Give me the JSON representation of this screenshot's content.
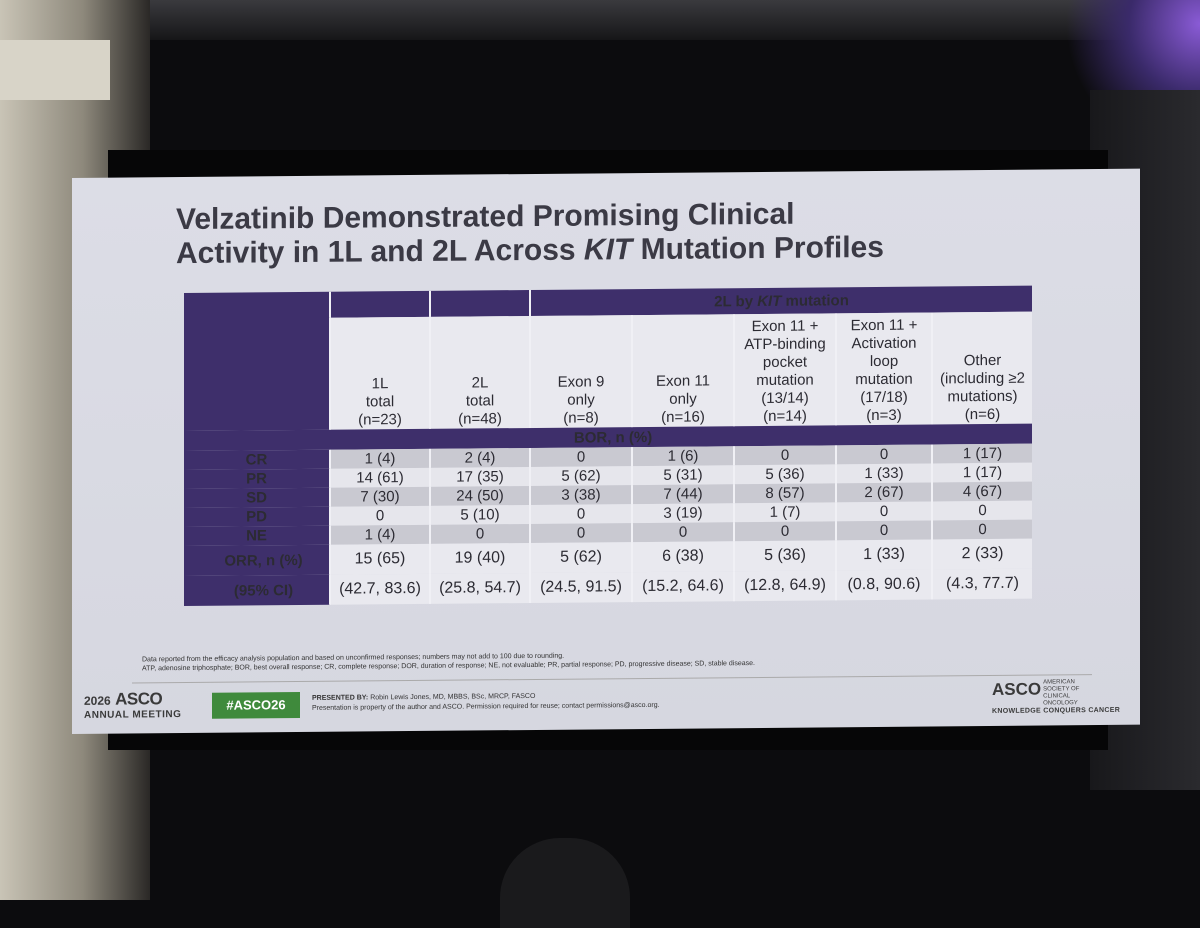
{
  "slide": {
    "title_line1": "Velzatinib Demonstrated Promising Clinical",
    "title_line2_pre": "Activity in 1L and 2L Across ",
    "title_line2_italic": "KIT",
    "title_line2_post": " Mutation Profiles"
  },
  "table": {
    "group_header_pre": "2L by ",
    "group_header_italic": "KIT",
    "group_header_post": " mutation",
    "columns": [
      {
        "l1": "1L",
        "l2": "total",
        "l3": "(n=23)"
      },
      {
        "l1": "2L",
        "l2": "total",
        "l3": "(n=48)"
      },
      {
        "l1": "Exon 9",
        "l2": "only",
        "l3": "(n=8)"
      },
      {
        "l1": "Exon 11",
        "l2": "only",
        "l3": "(n=16)"
      },
      {
        "l0a": "Exon 11 +",
        "l0b": "ATP-binding",
        "l0c": "pocket",
        "l1": "mutation",
        "l2": "(13/14)",
        "l3": "(n=14)"
      },
      {
        "l0b": "Exon 11 +",
        "l0c": "Activation",
        "l1": "loop",
        "l2": "mutation",
        "l3": "(17/18)",
        "l4": "(n=3)"
      },
      {
        "l1": "Other",
        "l2": "(including ≥2",
        "l3": "mutations)",
        "l4": "(n=6)"
      }
    ],
    "section_label": "BOR, n (%)",
    "rows": [
      {
        "label": "CR",
        "values": [
          "1 (4)",
          "2 (4)",
          "0",
          "1 (6)",
          "0",
          "0",
          "1 (17)"
        ]
      },
      {
        "label": "PR",
        "values": [
          "14 (61)",
          "17 (35)",
          "5 (62)",
          "5 (31)",
          "5 (36)",
          "1 (33)",
          "1 (17)"
        ]
      },
      {
        "label": "SD",
        "values": [
          "7 (30)",
          "24 (50)",
          "3 (38)",
          "7 (44)",
          "8 (57)",
          "2 (67)",
          "4 (67)"
        ]
      },
      {
        "label": "PD",
        "values": [
          "0",
          "5 (10)",
          "0",
          "3 (19)",
          "1 (7)",
          "0",
          "0"
        ]
      },
      {
        "label": "NE",
        "values": [
          "1 (4)",
          "0",
          "0",
          "0",
          "0",
          "0",
          "0"
        ]
      }
    ],
    "orr": {
      "label": "ORR, n (%)",
      "values": [
        "15 (65)",
        "19 (40)",
        "5 (62)",
        "6 (38)",
        "5 (36)",
        "1 (33)",
        "2 (33)"
      ]
    },
    "ci": {
      "label": "(95% CI)",
      "values": [
        "(42.7, 83.6)",
        "(25.8, 54.7)",
        "(24.5, 91.5)",
        "(15.2, 64.6)",
        "(12.8, 64.9)",
        "(0.8, 90.6)",
        "(4.3, 77.7)"
      ]
    }
  },
  "footnote": {
    "line1": "Data reported from the efficacy analysis population and based on unconfirmed responses; numbers may not add to 100 due to rounding.",
    "line2": "ATP, adenosine triphosphate; BOR, best overall response; CR, complete response; DOR, duration of response; NE, not evaluable; PR, partial response; PD, progressive disease; SD, stable disease."
  },
  "footer": {
    "year": "2026",
    "asco": "ASCO",
    "annual_meeting": "ANNUAL MEETING",
    "hashtag": "#ASCO26",
    "presented_label": "PRESENTED BY:",
    "presenter": "Robin Lewis Jones, MD, MBBS, BSc, MRCP, FASCO",
    "notice": "Presentation is property of the author and ASCO. Permission required for reuse; contact permissions@asco.org.",
    "asco_right": "ASCO",
    "society": "AMERICAN SOCIETY OF CLINICAL ONCOLOGY",
    "tagline": "KNOWLEDGE CONQUERS CANCER"
  },
  "colors": {
    "header_purple": "#3e2f6b",
    "hashtag_green": "#3f8a3c"
  }
}
